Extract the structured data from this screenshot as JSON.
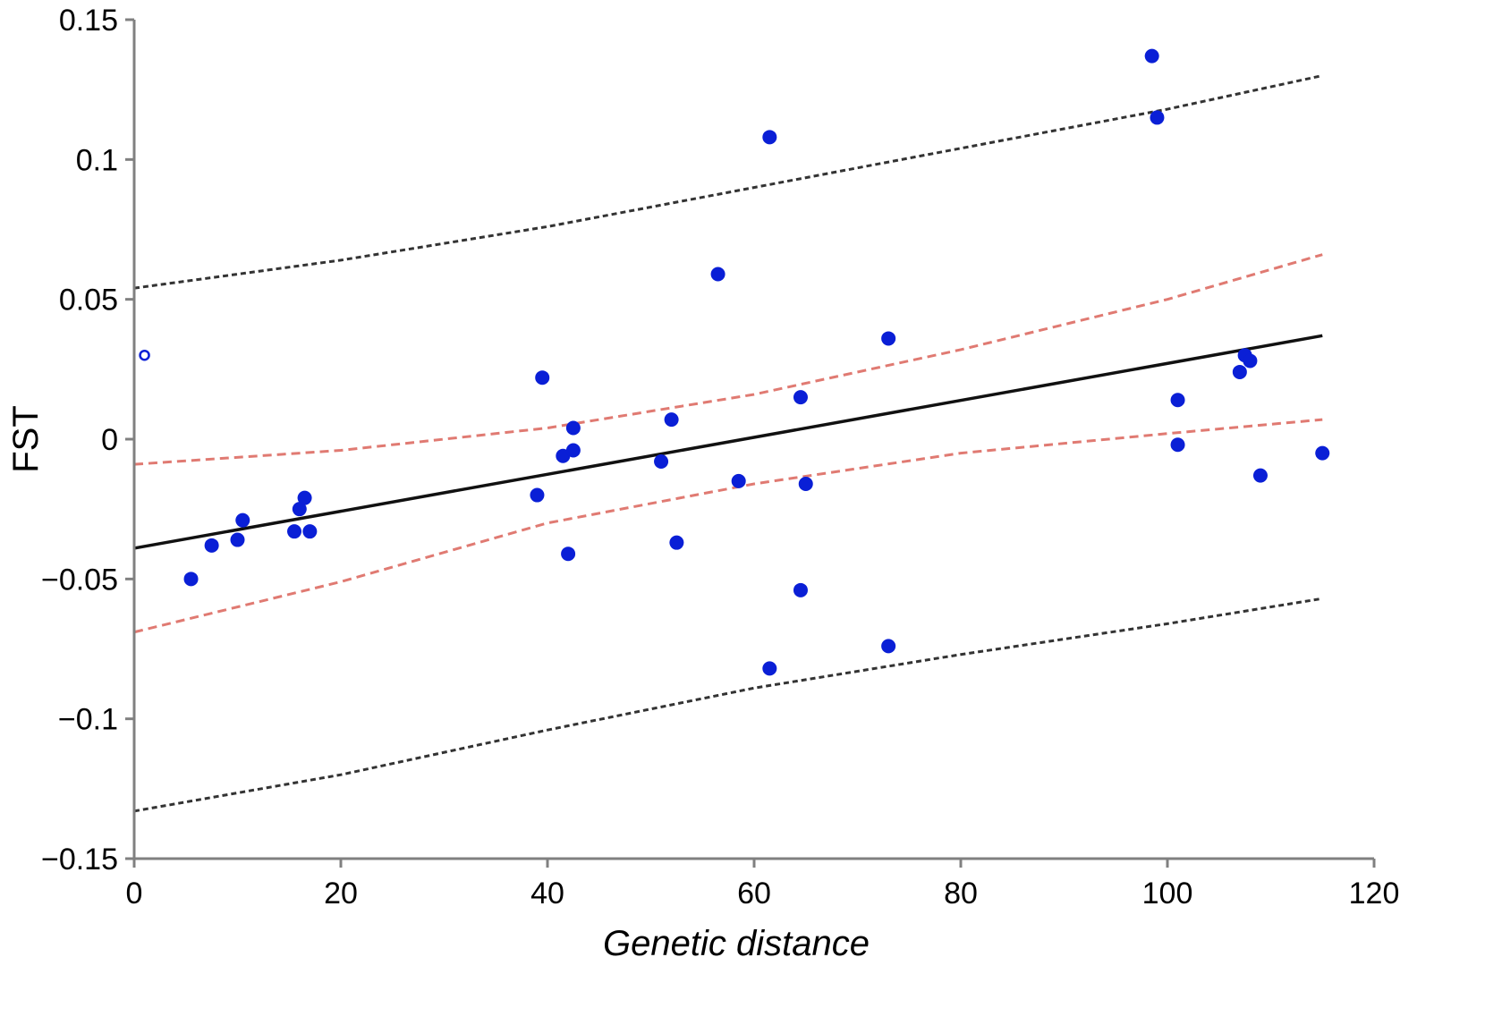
{
  "chart_data": {
    "type": "scatter",
    "title": "",
    "xlabel": "Genetic distance",
    "ylabel": "FST",
    "xlim": [
      0,
      120
    ],
    "ylim": [
      -0.15,
      0.15
    ],
    "x_ticks": [
      0,
      20,
      40,
      60,
      80,
      100,
      120
    ],
    "x_tick_labels": [
      "0",
      "20",
      "40",
      "60",
      "80",
      "100",
      "120"
    ],
    "y_ticks": [
      0.15,
      0.1,
      0.05,
      0,
      -0.05,
      -0.1,
      -0.15
    ],
    "y_tick_labels": [
      "0.15",
      "0.1",
      "0.05",
      "0",
      "−0.05",
      "−0.1",
      "−0.15"
    ],
    "grid": false,
    "colors": {
      "points": "#0a1fd6",
      "regression": "#111111",
      "confidence_band": "#e07a72",
      "prediction_band": "#333333",
      "axis": "#808080"
    },
    "outlier_point": {
      "x": 1,
      "y": 0.03
    },
    "points": [
      {
        "x": 5.5,
        "y": -0.05
      },
      {
        "x": 7.5,
        "y": -0.038
      },
      {
        "x": 10,
        "y": -0.036
      },
      {
        "x": 10.5,
        "y": -0.029
      },
      {
        "x": 15.5,
        "y": -0.033
      },
      {
        "x": 16,
        "y": -0.025
      },
      {
        "x": 16.5,
        "y": -0.021
      },
      {
        "x": 17,
        "y": -0.033
      },
      {
        "x": 39,
        "y": -0.02
      },
      {
        "x": 39.5,
        "y": 0.022
      },
      {
        "x": 41.5,
        "y": -0.006
      },
      {
        "x": 42,
        "y": -0.041
      },
      {
        "x": 42.5,
        "y": -0.004
      },
      {
        "x": 42.5,
        "y": 0.004
      },
      {
        "x": 51,
        "y": -0.008
      },
      {
        "x": 52,
        "y": 0.007
      },
      {
        "x": 52.5,
        "y": -0.037
      },
      {
        "x": 56.5,
        "y": 0.059
      },
      {
        "x": 58.5,
        "y": -0.015
      },
      {
        "x": 61.5,
        "y": -0.082
      },
      {
        "x": 61.5,
        "y": 0.108
      },
      {
        "x": 64.5,
        "y": 0.015
      },
      {
        "x": 64.5,
        "y": -0.054
      },
      {
        "x": 65,
        "y": -0.016
      },
      {
        "x": 73,
        "y": 0.036
      },
      {
        "x": 73,
        "y": -0.074
      },
      {
        "x": 98.5,
        "y": 0.137
      },
      {
        "x": 99,
        "y": 0.115
      },
      {
        "x": 101,
        "y": 0.014
      },
      {
        "x": 101,
        "y": -0.002
      },
      {
        "x": 107,
        "y": 0.024
      },
      {
        "x": 107.5,
        "y": 0.03
      },
      {
        "x": 108,
        "y": 0.028
      },
      {
        "x": 109,
        "y": -0.013
      },
      {
        "x": 115,
        "y": -0.005
      }
    ],
    "regression_line": {
      "x": [
        0,
        115
      ],
      "y": [
        -0.039,
        0.037
      ]
    },
    "confidence_upper": {
      "x": [
        0,
        20,
        40,
        60,
        80,
        100,
        115
      ],
      "y": [
        -0.009,
        -0.004,
        0.004,
        0.016,
        0.032,
        0.05,
        0.066
      ]
    },
    "confidence_lower": {
      "x": [
        0,
        20,
        40,
        60,
        80,
        100,
        115
      ],
      "y": [
        -0.069,
        -0.051,
        -0.03,
        -0.016,
        -0.005,
        0.002,
        0.007
      ]
    },
    "prediction_upper": {
      "x": [
        0,
        20,
        40,
        60,
        80,
        100,
        115
      ],
      "y": [
        0.054,
        0.064,
        0.076,
        0.09,
        0.104,
        0.118,
        0.13
      ]
    },
    "prediction_lower": {
      "x": [
        0,
        20,
        40,
        60,
        80,
        100,
        115
      ],
      "y": [
        -0.133,
        -0.12,
        -0.104,
        -0.089,
        -0.077,
        -0.066,
        -0.057
      ]
    }
  }
}
